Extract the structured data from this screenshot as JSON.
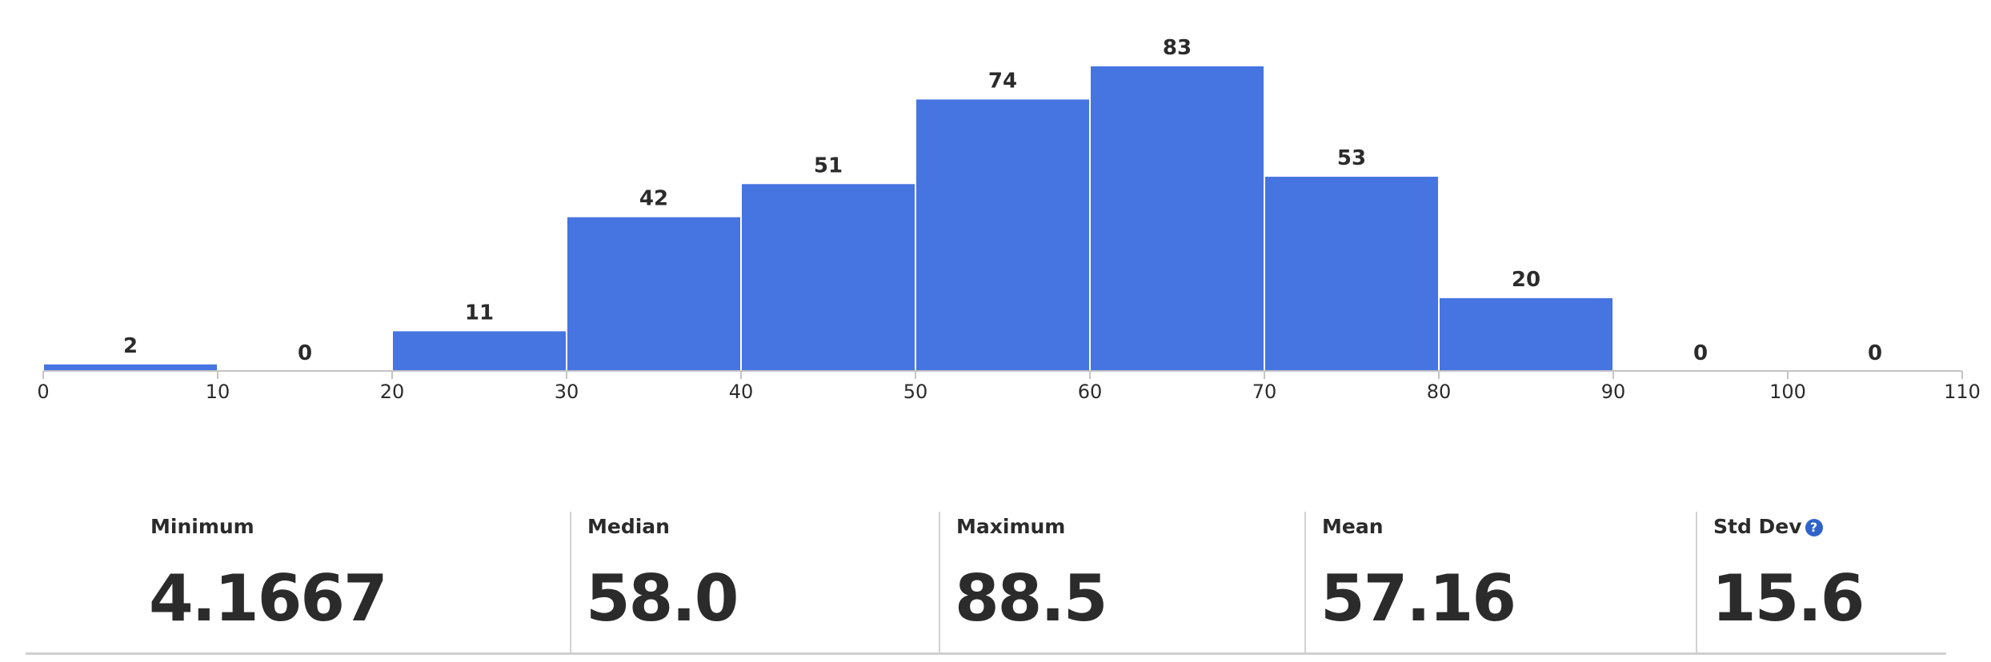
{
  "chart_data": {
    "type": "bar",
    "title": "",
    "xlabel": "",
    "ylabel": "",
    "bins": [
      {
        "start": 0,
        "end": 10,
        "count": 2
      },
      {
        "start": 10,
        "end": 20,
        "count": 0
      },
      {
        "start": 20,
        "end": 30,
        "count": 11
      },
      {
        "start": 30,
        "end": 40,
        "count": 42
      },
      {
        "start": 40,
        "end": 50,
        "count": 51
      },
      {
        "start": 50,
        "end": 60,
        "count": 74
      },
      {
        "start": 60,
        "end": 70,
        "count": 83
      },
      {
        "start": 70,
        "end": 80,
        "count": 53
      },
      {
        "start": 80,
        "end": 90,
        "count": 20
      },
      {
        "start": 90,
        "end": 100,
        "count": 0
      },
      {
        "start": 100,
        "end": 110,
        "count": 0
      }
    ],
    "x_ticks": [
      "0",
      "10",
      "20",
      "30",
      "40",
      "50",
      "60",
      "70",
      "80",
      "90",
      "100",
      "110"
    ],
    "xlim": [
      0,
      110
    ],
    "ylim": [
      0,
      83
    ],
    "grid": false,
    "bar_color": "#4674e1"
  },
  "stats": {
    "minimum": {
      "label": "Minimum",
      "value": "4.1667"
    },
    "median": {
      "label": "Median",
      "value": "58.0"
    },
    "maximum": {
      "label": "Maximum",
      "value": "88.5"
    },
    "mean": {
      "label": "Mean",
      "value": "57.16"
    },
    "std_dev": {
      "label": "Std Dev",
      "value": "15.6",
      "help_icon": "question-circle-icon",
      "help_glyph": "?"
    }
  }
}
